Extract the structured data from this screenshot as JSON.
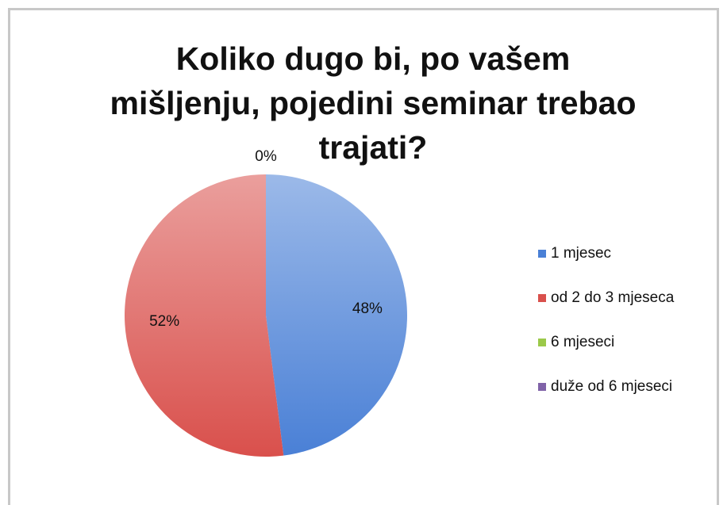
{
  "chart_data": {
    "type": "pie",
    "title": "Koliko dugo bi, po vašem mišljenju, pojedini seminar trebao trajati?",
    "categories": [
      "1 mjesec",
      "od 2 do 3 mjeseca",
      "6 mjeseci",
      "duže od 6 mjeseci"
    ],
    "values": [
      48,
      52,
      0,
      0
    ],
    "value_labels": [
      "48%",
      "52%",
      "0%",
      null
    ],
    "colors": [
      "#4a80d6",
      "#d9504c",
      "#9bc94a",
      "#8063a8"
    ],
    "legend": "right"
  }
}
